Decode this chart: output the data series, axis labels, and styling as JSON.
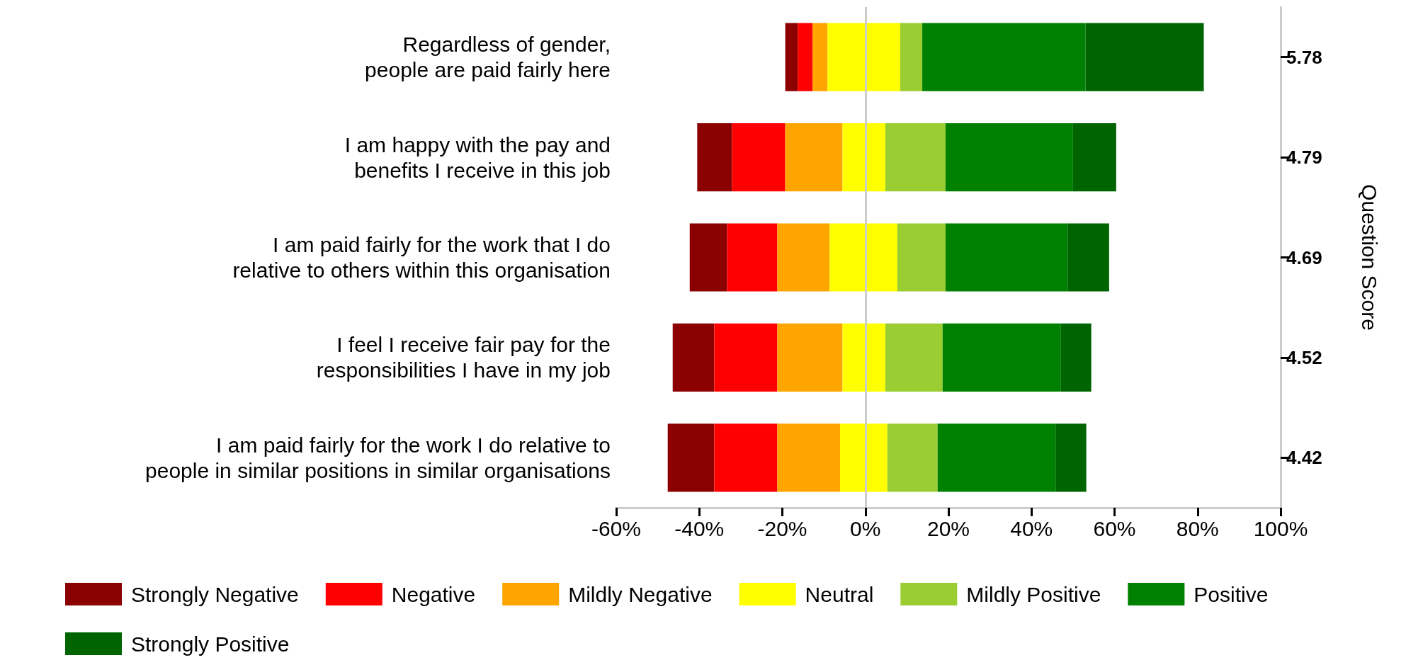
{
  "chart_data": {
    "type": "bar",
    "orientation": "horizontal",
    "categories": [
      "Regardless of gender,\npeople are paid fairly here",
      "I am happy with the pay and\nbenefits I receive in this job",
      "I am paid fairly for the work that I do\nrelative to others within this organisation",
      "I feel I receive fair pay for the\nresponsibilities I have in my job",
      "I am paid fairly for the work I do relative to\npeople in similar positions in similar organisations"
    ],
    "series": [
      {
        "name": "Strongly Negative",
        "color": "#8b0000",
        "base": [
          -19.3,
          -40.5,
          -42.3,
          -46.4,
          -47.6
        ],
        "values": [
          3.0,
          8.4,
          9.0,
          10.0,
          11.2
        ]
      },
      {
        "name": "Negative",
        "color": "#ff0000",
        "base": [
          -16.3,
          -32.1,
          -33.3,
          -36.4,
          -36.4
        ],
        "values": [
          3.6,
          12.8,
          12.1,
          15.2,
          15.2
        ]
      },
      {
        "name": "Mildly Negative",
        "color": "#ffa500",
        "base": [
          -12.7,
          -19.3,
          -21.2,
          -21.2,
          -21.2
        ],
        "values": [
          3.6,
          13.8,
          12.6,
          15.7,
          15.1
        ]
      },
      {
        "name": "Neutral",
        "color": "#ffff00",
        "base": [
          -9.1,
          -5.5,
          -8.6,
          -5.5,
          -6.1
        ],
        "values": [
          17.5,
          10.3,
          16.3,
          10.3,
          11.4
        ]
      },
      {
        "name": "Mildly Positive",
        "color": "#9acd32",
        "base": [
          8.4,
          4.8,
          7.7,
          4.8,
          5.3
        ],
        "values": [
          5.3,
          14.5,
          11.6,
          13.8,
          12.1
        ]
      },
      {
        "name": "Positive",
        "color": "#008000",
        "base": [
          13.7,
          19.3,
          19.3,
          18.6,
          17.4
        ],
        "values": [
          39.3,
          30.7,
          29.4,
          28.5,
          28.5
        ]
      },
      {
        "name": "Strongly Positive",
        "color": "#006400",
        "base": [
          53.0,
          50.0,
          48.7,
          47.1,
          45.9
        ],
        "values": [
          28.5,
          10.4,
          10.0,
          7.3,
          7.3
        ]
      }
    ],
    "xlim": [
      -60,
      100
    ],
    "xticks": [
      {
        "value": -60,
        "label": "-60%"
      },
      {
        "value": -40,
        "label": "-40%"
      },
      {
        "value": -20,
        "label": "-20%"
      },
      {
        "value": 0,
        "label": "0%"
      },
      {
        "value": 20,
        "label": "20%"
      },
      {
        "value": 40,
        "label": "40%"
      },
      {
        "value": 60,
        "label": "60%"
      },
      {
        "value": 80,
        "label": "80%"
      },
      {
        "value": 100,
        "label": "100%"
      }
    ],
    "y2_categories": [
      "5.78",
      "4.79",
      "4.69",
      "4.52",
      "4.42"
    ],
    "y2label": "Question Score",
    "ref_lines": [
      {
        "axis": "x",
        "value": 0,
        "label": null,
        "color": "#cccccc"
      }
    ],
    "grid": false,
    "legend": "bottom"
  }
}
